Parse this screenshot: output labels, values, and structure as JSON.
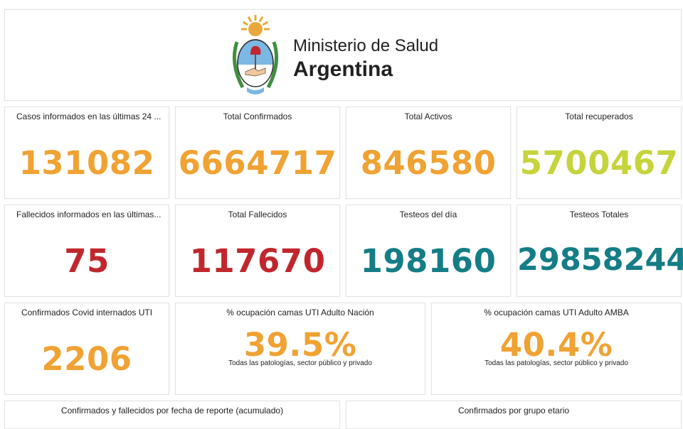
{
  "header": {
    "brand_line1": "Ministerio de Salud",
    "brand_line2": "Argentina",
    "logo": "argentina-coat-of-arms"
  },
  "colors": {
    "orange": "#f0a233",
    "lime": "#c6d43c",
    "red": "#c0272d",
    "teal": "#147d86"
  },
  "stats": {
    "casos24": {
      "label": "Casos informados en las últimas 24 ...",
      "value": "131082"
    },
    "confirmados": {
      "label": "Total Confirmados",
      "value": "6664717"
    },
    "activos": {
      "label": "Total Activos",
      "value": "846580"
    },
    "recuperados": {
      "label": "Total recuperados",
      "value": "5700467"
    },
    "fallecidos24": {
      "label": "Fallecidos informados en las últimas...",
      "value": "75"
    },
    "fallecidos": {
      "label": "Total Fallecidos",
      "value": "117670"
    },
    "testeos_dia": {
      "label": "Testeos del día",
      "value": "198160"
    },
    "testeos_totales": {
      "label": "Testeos Totales",
      "value": "29858244"
    },
    "uti": {
      "label": "Confirmados Covid internados UTI",
      "value": "2206"
    },
    "ocup_nacion": {
      "label": "% ocupación camas UTI Adulto Nación",
      "value": "39.5%",
      "note": "Todas las patologías, sector público y privado"
    },
    "ocup_amba": {
      "label": "% ocupación camas UTI Adulto AMBA",
      "value": "40.4%",
      "note": "Todas las patologías, sector público y privado"
    }
  },
  "panels": {
    "acumulado": "Confirmados y fallecidos por fecha de reporte (acumulado)",
    "grupo_etario": "Confirmados por grupo etario"
  }
}
